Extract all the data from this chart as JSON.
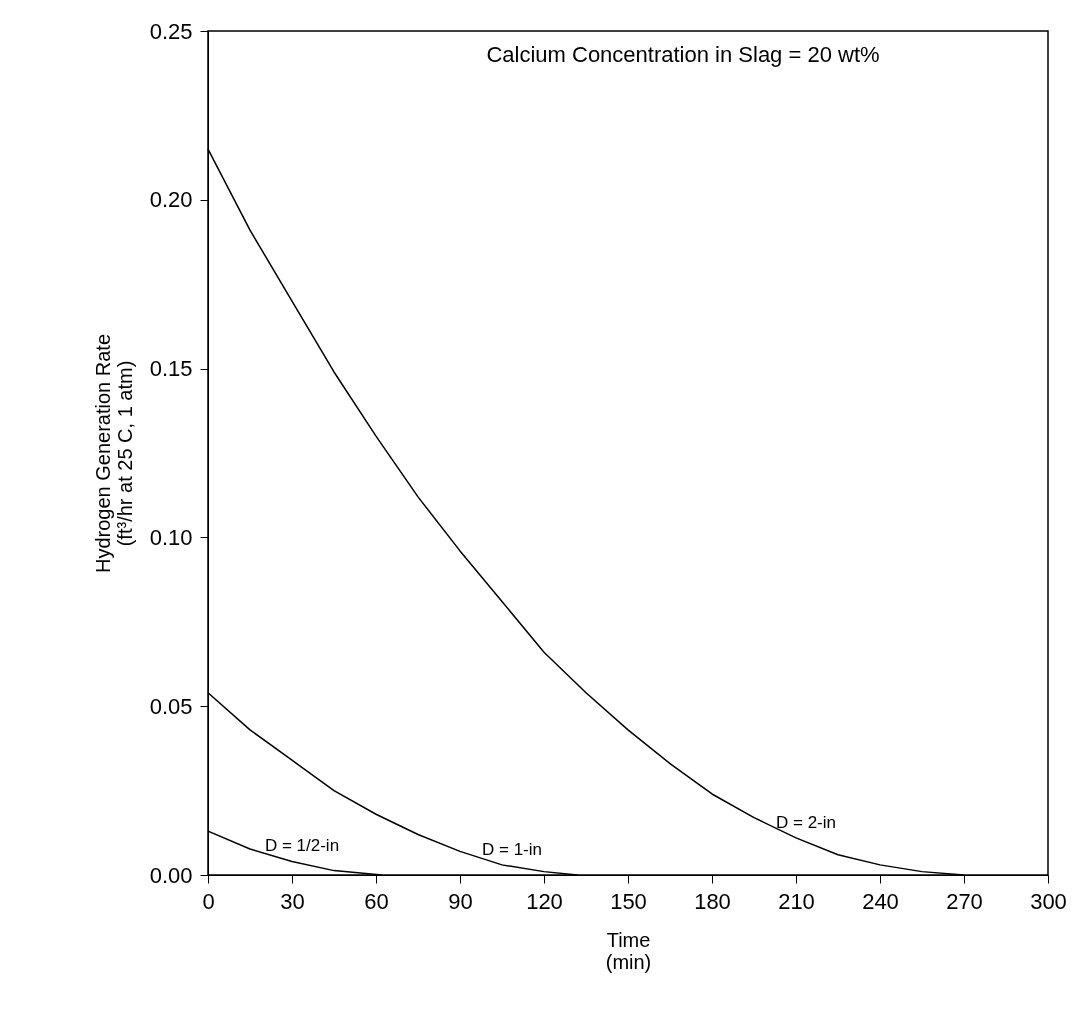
{
  "chart_data": {
    "type": "line",
    "title": "Calcium Concentration in Slag = 20 wt%",
    "xlabel": "Time\n(min)",
    "ylabel": "Hydrogen Generation Rate\n(ft³/hr at 25 C, 1 atm)",
    "xlim": [
      0,
      300
    ],
    "xticks": [
      0,
      30,
      60,
      90,
      120,
      150,
      180,
      210,
      240,
      270,
      300
    ],
    "ylim": [
      0,
      0.25
    ],
    "yticks": [
      {
        "value": 0,
        "label": "0.00"
      },
      {
        "value": 0.05,
        "label": "0.05"
      },
      {
        "value": 0.1,
        "label": "0.10"
      },
      {
        "value": 0.15,
        "label": "0.15"
      },
      {
        "value": 0.2,
        "label": "0.20"
      },
      {
        "value": 0.25,
        "label": "0.25"
      }
    ],
    "grid": false,
    "marker": "none",
    "line_style": "solid",
    "series": [
      {
        "name": "D = 1/2-in",
        "color": "#000000",
        "x": [
          0,
          15,
          30,
          45,
          62
        ],
        "values": [
          0.013,
          0.0077,
          0.004,
          0.0013,
          0
        ]
      },
      {
        "name": "D = 1-in",
        "color": "#000000",
        "x": [
          0,
          15,
          30,
          45,
          60,
          75,
          90,
          105,
          120,
          132
        ],
        "values": [
          0.054,
          0.043,
          0.034,
          0.025,
          0.018,
          0.012,
          0.007,
          0.003,
          0.001,
          0
        ]
      },
      {
        "name": "D = 2-in",
        "color": "#000000",
        "x": [
          0,
          15,
          30,
          45,
          60,
          75,
          90,
          105,
          120,
          135,
          150,
          165,
          180,
          195,
          210,
          225,
          240,
          255,
          270
        ],
        "values": [
          0.215,
          0.191,
          0.17,
          0.149,
          0.13,
          0.112,
          0.096,
          0.081,
          0.066,
          0.054,
          0.043,
          0.033,
          0.024,
          0.017,
          0.011,
          0.006,
          0.003,
          0.001,
          0
        ]
      }
    ]
  }
}
